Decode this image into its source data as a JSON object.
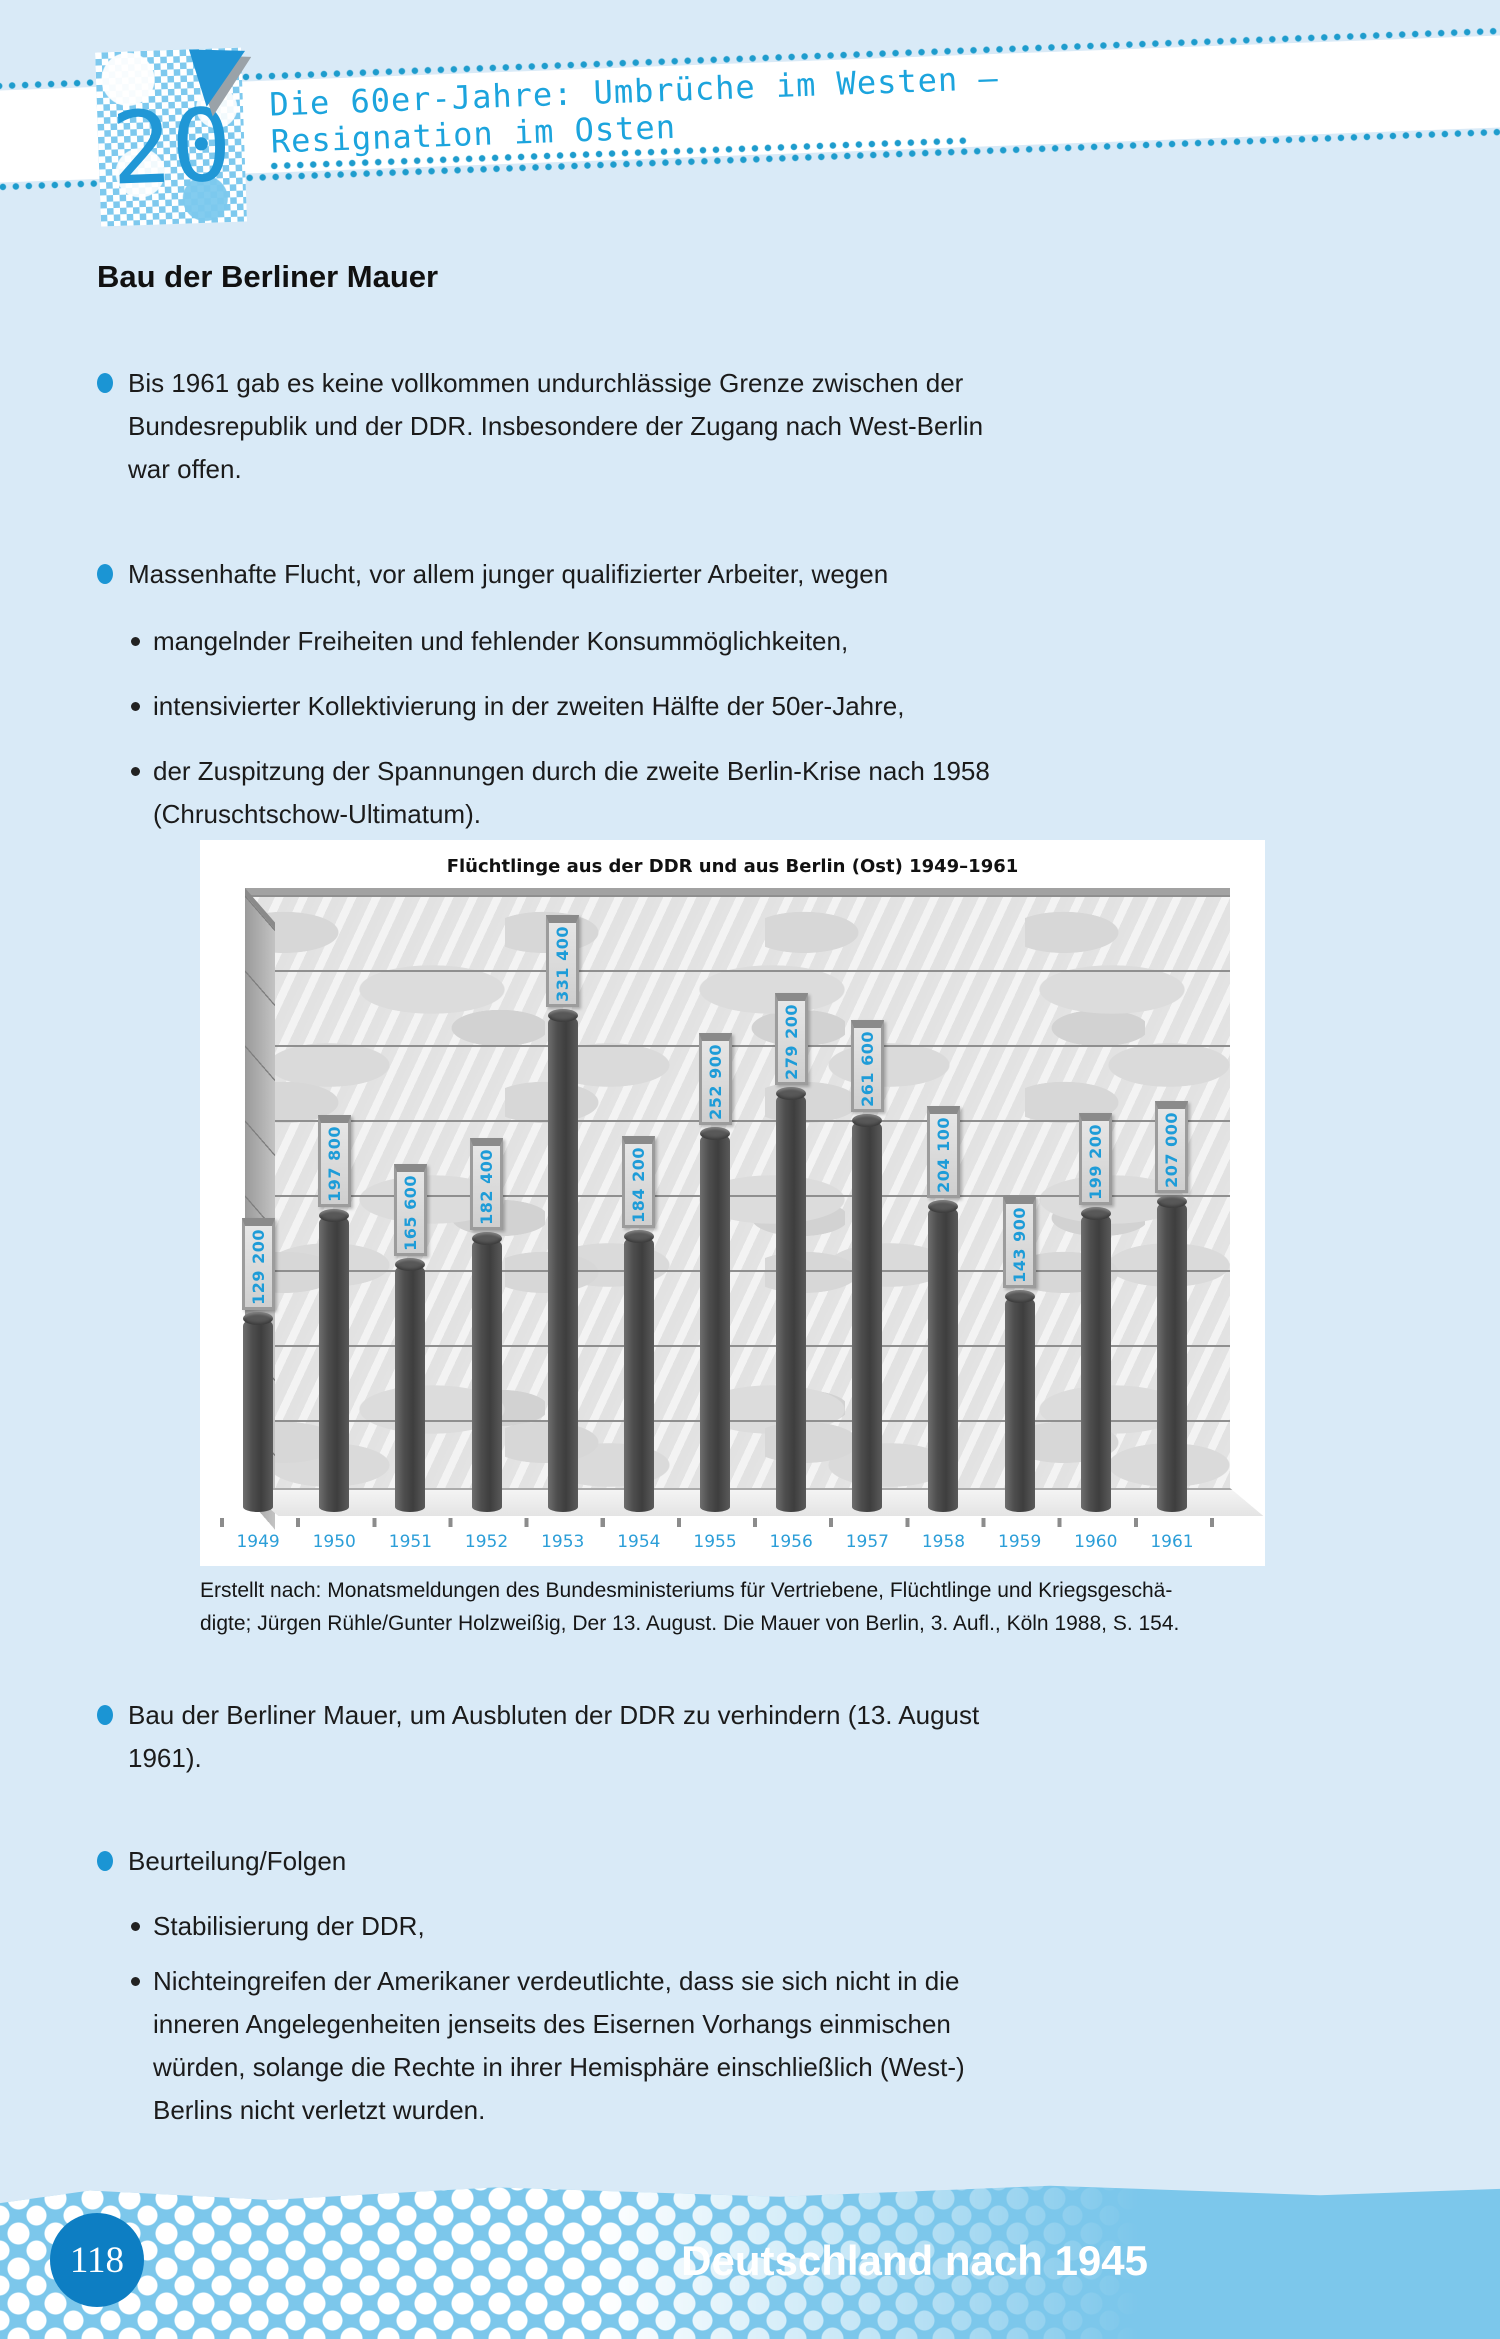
{
  "page": {
    "background": "#d9eaf7",
    "accent_blue": "#1e9cd8"
  },
  "header": {
    "chapter_number": "20",
    "title_line1": "Die 60er-Jahre: Umbrüche im Westen –",
    "title_line2": "Resignation im Osten"
  },
  "main": {
    "heading": "Bau der Berliner Mauer",
    "bullets": [
      {
        "level": 1,
        "text": "Bis 1961 gab es keine vollkommen undurchlässige Grenze zwischen der\nBundesrepublik und der DDR. Insbesondere der Zugang nach West-Berlin\nwar offen."
      },
      {
        "level": 1,
        "text": "Massenhafte Flucht, vor allem junger qualifizierter Arbeiter, wegen"
      },
      {
        "level": 2,
        "text": "mangelnder Freiheiten und fehlender Konsummöglichkeiten,"
      },
      {
        "level": 2,
        "text": "intensivierter Kollektivierung in der zweiten Hälfte der 50er-Jahre,"
      },
      {
        "level": 2,
        "text": "der Zuspitzung der Spannungen durch die zweite Berlin-Krise nach 1958\n(Chruschtschow-Ultimatum)."
      },
      {
        "level": 1,
        "text": "Bau der Berliner Mauer, um Ausbluten der DDR zu verhindern (13. August\n1961)."
      },
      {
        "level": 1,
        "text": "Beurteilung/Folgen"
      },
      {
        "level": 2,
        "text": "Stabilisierung der DDR,"
      },
      {
        "level": 2,
        "text": "Nichteingreifen der Amerikaner verdeutlichte, dass sie sich nicht in die\ninneren Angelegenheiten jenseits des Eisernen Vorhangs einmischen\nwürden, solange die Rechte in ihrer Hemisphäre einschließlich (West-)\nBerlins nicht verletzt wurden."
      }
    ],
    "chart_caption": "Erstellt nach: Monatsmeldungen des Bundesministeriums für Vertriebene, Flüchtlinge und Kriegsgeschä-\ndigte; Jürgen Rühle/Gunter Holzweißig, Der 13. August. Die Mauer von Berlin, 3. Aufl., Köln 1988, S. 154."
  },
  "chart_data": {
    "type": "bar",
    "title": "Flüchtlinge aus der DDR und aus Berlin (Ost) 1949–1961",
    "categories": [
      "1949",
      "1950",
      "1951",
      "1952",
      "1953",
      "1954",
      "1955",
      "1956",
      "1957",
      "1958",
      "1959",
      "1960",
      "1961"
    ],
    "values": [
      129200,
      197800,
      165600,
      182400,
      331400,
      184200,
      252900,
      279200,
      261600,
      204100,
      143900,
      199200,
      207000
    ],
    "value_labels": [
      "129 200",
      "197 800",
      "165 600",
      "182 400",
      "331 400",
      "184 200",
      "252 900",
      "279 200",
      "261 600",
      "204 100",
      "143 900",
      "199 200",
      "207 000"
    ],
    "xlabel": "",
    "ylabel": "",
    "ylim": [
      0,
      400000
    ],
    "grid": true,
    "legend": "none",
    "style_note": "3d cylinder columns with rotated value plaques in front of a marble wall",
    "bar_color": "#4e4e4e",
    "label_color": "#1e9cd8"
  },
  "footer": {
    "page_number": "118",
    "section_title": "Deutschland nach 1945"
  }
}
